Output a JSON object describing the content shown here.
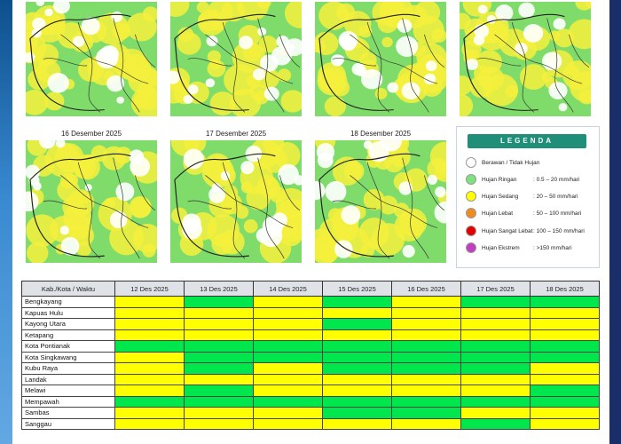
{
  "maps": [
    {
      "title": "",
      "date_key": "12"
    },
    {
      "title": "",
      "date_key": "13"
    },
    {
      "title": "",
      "date_key": "14"
    },
    {
      "title": "",
      "date_key": "15"
    },
    {
      "title": "16 Desember 2025",
      "date_key": "16"
    },
    {
      "title": "17 Desember 2025",
      "date_key": "17"
    },
    {
      "title": "18 Desember 2025",
      "date_key": "18"
    }
  ],
  "legend": {
    "title": "LEGENDA",
    "items": [
      {
        "label": "Berawan / Tidak Hujan",
        "range": "",
        "color": "#ffffff"
      },
      {
        "label": "Hujan Ringan",
        "range": ": 0.5 – 20 mm/hari",
        "color": "#7fe07f"
      },
      {
        "label": "Hujan Sedang",
        "range": ": 20 – 50 mm/hari",
        "color": "#ffff00"
      },
      {
        "label": "Hujan Lebat",
        "range": ": 50 – 100 mm/hari",
        "color": "#f08c1e"
      },
      {
        "label": "Hujan Sangat Lebat",
        "range": ": 100 – 150 mm/hari",
        "color": "#e00000"
      },
      {
        "label": "Hujan Ekstrem",
        "range": ": >150 mm/hari",
        "color": "#c040c0"
      }
    ]
  },
  "table": {
    "header": [
      "Kab./Kota / Waktu",
      "12 Des 2025",
      "13 Des 2025",
      "14 Des 2025",
      "15 Des 2025",
      "16 Des 2025",
      "17 Des 2025",
      "18 Des 2025"
    ],
    "rows": [
      {
        "name": "Bengkayang",
        "cells": [
          "Y",
          "G",
          "Y",
          "G",
          "Y",
          "G",
          "G"
        ]
      },
      {
        "name": "Kapuas Hulu",
        "cells": [
          "Y",
          "Y",
          "Y",
          "Y",
          "Y",
          "Y",
          "Y"
        ]
      },
      {
        "name": "Kayong Utara",
        "cells": [
          "Y",
          "Y",
          "Y",
          "G",
          "Y",
          "Y",
          "Y"
        ]
      },
      {
        "name": "Ketapang",
        "cells": [
          "Y",
          "Y",
          "Y",
          "Y",
          "Y",
          "Y",
          "Y"
        ]
      },
      {
        "name": "Kota Pontianak",
        "cells": [
          "G",
          "G",
          "G",
          "G",
          "G",
          "G",
          "G"
        ]
      },
      {
        "name": "Kota Singkawang",
        "cells": [
          "Y",
          "G",
          "G",
          "G",
          "G",
          "G",
          "G"
        ]
      },
      {
        "name": "Kubu Raya",
        "cells": [
          "Y",
          "G",
          "Y",
          "G",
          "G",
          "G",
          "Y"
        ]
      },
      {
        "name": "Landak",
        "cells": [
          "Y",
          "Y",
          "Y",
          "Y",
          "Y",
          "Y",
          "Y"
        ]
      },
      {
        "name": "Melawi",
        "cells": [
          "Y",
          "G",
          "Y",
          "Y",
          "Y",
          "Y",
          "G"
        ]
      },
      {
        "name": "Mempawah",
        "cells": [
          "G",
          "G",
          "G",
          "G",
          "G",
          "G",
          "G"
        ]
      },
      {
        "name": "Sambas",
        "cells": [
          "Y",
          "Y",
          "Y",
          "G",
          "G",
          "Y",
          "Y"
        ]
      },
      {
        "name": "Sanggau",
        "cells": [
          "Y",
          "Y",
          "Y",
          "Y",
          "Y",
          "G",
          "Y"
        ]
      }
    ],
    "colors": {
      "Y": "#ffff00",
      "G": "#00e64d"
    }
  }
}
